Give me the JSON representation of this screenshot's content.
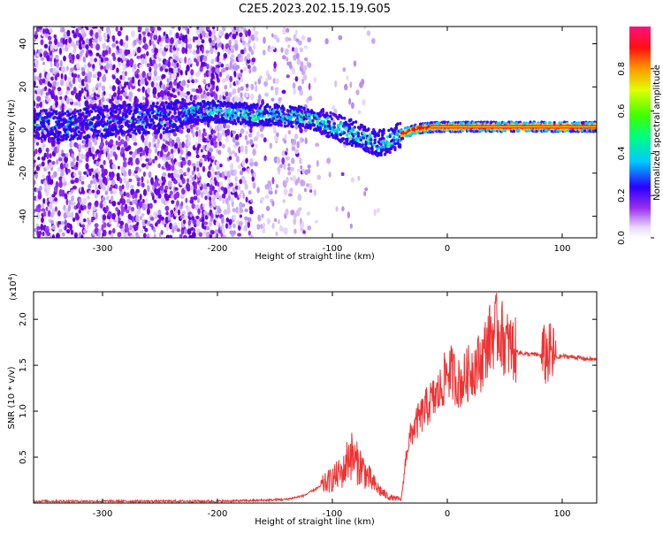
{
  "title": "C2E5.2023.202.15.19.G05",
  "colors": {
    "snr_line": "#ee3333",
    "spectrum_low": "#d8c0f0",
    "spectrum_mid": "#7a00ee",
    "spectrum_high": "#cc0033"
  },
  "chart_data": [
    {
      "type": "heatmap",
      "name": "spectrogram",
      "xlabel": "Height of straight line (km)",
      "ylabel": "Frequency (Hz)",
      "xlim": [
        -360,
        130
      ],
      "ylim": [
        -50,
        48
      ],
      "xticks": [
        -300,
        -200,
        -100,
        0,
        100
      ],
      "yticks": [
        -40,
        -20,
        0,
        20,
        40
      ],
      "xtick_labels": [
        "-300",
        "-200",
        "-100",
        "0",
        "100"
      ],
      "ytick_labels": [
        "-40",
        "-20",
        "0",
        "20",
        "40"
      ],
      "ridge": {
        "x": [
          -360,
          -330,
          -300,
          -270,
          -240,
          -225,
          -210,
          -190,
          -170,
          -150,
          -130,
          -115,
          -100,
          -90,
          -80,
          -70,
          -60,
          -50,
          -40,
          -30,
          -20,
          -10,
          0,
          20,
          50,
          80,
          100,
          130
        ],
        "y": [
          3,
          2,
          4,
          5,
          6,
          8,
          9,
          8,
          7,
          7,
          6,
          5,
          2,
          0,
          -2,
          -5,
          -6,
          -5,
          -2,
          0,
          1,
          1.5,
          1.5,
          1.5,
          1.5,
          1.5,
          1.5,
          1.5
        ]
      },
      "colorbar": {
        "label": "Normalized spectral amplitude",
        "range": [
          0,
          1
        ],
        "ticks": [
          0.0,
          0.2,
          0.4,
          0.6,
          0.8
        ],
        "tick_labels": [
          "0.0",
          "0.2",
          "0.4",
          "0.6",
          "0.8"
        ]
      }
    },
    {
      "type": "line",
      "name": "snr",
      "xlabel": "Height of straight line (km)",
      "ylabel": "SNR (10 * v/v)",
      "y_multiplier": "(x10",
      "y_multiplier_exp": "4",
      "y_multiplier_close": ")",
      "xlim": [
        -360,
        130
      ],
      "ylim": [
        0,
        2.3
      ],
      "xticks": [
        -300,
        -200,
        -100,
        0,
        100
      ],
      "yticks": [
        0.5,
        1.0,
        1.5,
        2.0
      ],
      "xtick_labels": [
        "-300",
        "-200",
        "-100",
        "0",
        "100"
      ],
      "ytick_labels": [
        "0.5",
        "1.0",
        "1.5",
        "2.0"
      ],
      "series": [
        {
          "name": "SNR",
          "x": [
            -360,
            -300,
            -250,
            -200,
            -160,
            -140,
            -125,
            -115,
            -105,
            -98,
            -90,
            -85,
            -80,
            -75,
            -70,
            -65,
            -60,
            -55,
            -50,
            -45,
            -40,
            -35,
            -30,
            -25,
            -20,
            -15,
            -10,
            -5,
            0,
            5,
            10,
            15,
            20,
            25,
            30,
            35,
            40,
            45,
            50,
            55,
            60,
            65,
            70,
            75,
            80,
            85,
            90,
            95,
            100,
            110,
            120,
            130
          ],
          "y": [
            0.02,
            0.02,
            0.02,
            0.02,
            0.03,
            0.04,
            0.08,
            0.15,
            0.22,
            0.28,
            0.35,
            0.55,
            0.45,
            0.4,
            0.3,
            0.22,
            0.15,
            0.1,
            0.06,
            0.05,
            0.04,
            0.6,
            0.8,
            0.9,
            1.0,
            1.1,
            1.15,
            1.25,
            1.45,
            1.4,
            1.3,
            1.35,
            1.45,
            1.5,
            1.55,
            1.75,
            1.85,
            1.9,
            1.75,
            1.7,
            1.65,
            1.63,
            1.62,
            1.62,
            1.61,
            1.6,
            1.62,
            1.58,
            1.6,
            1.59,
            1.57,
            1.56
          ]
        }
      ]
    }
  ]
}
